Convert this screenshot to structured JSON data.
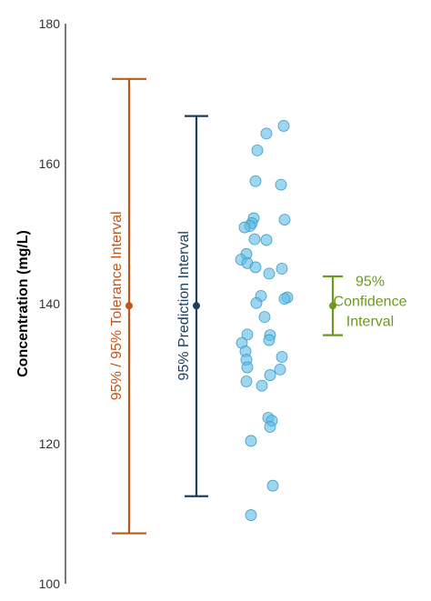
{
  "chart_data": {
    "type": "scatter",
    "title": "",
    "xlabel": "",
    "ylabel": "Concentration (mg/L)",
    "ylim": [
      100,
      180
    ],
    "yticks": [
      100,
      120,
      140,
      160,
      180
    ],
    "grid": false,
    "intervals": [
      {
        "key": "tolerance",
        "label": "95% / 95% Tolerance Interval",
        "color": "#c0571a",
        "center": 139.7,
        "lower": 107.2,
        "upper": 172.1
      },
      {
        "key": "prediction",
        "label": "95% Prediction Interval",
        "color": "#1d3f5e",
        "center": 139.7,
        "lower": 112.5,
        "upper": 166.8
      },
      {
        "key": "confidence",
        "label_lines": [
          "95%",
          "Confidence",
          "Interval"
        ],
        "color": "#6b9a1e",
        "center": 139.7,
        "lower": 135.5,
        "upper": 143.9
      }
    ],
    "points": {
      "color": "#5bbbe2",
      "values": [
        165.4,
        164.3,
        161.9,
        157.5,
        157.0,
        152.2,
        152.0,
        151.5,
        151.1,
        150.9,
        149.2,
        149.1,
        147.1,
        146.3,
        145.8,
        145.2,
        145.0,
        144.3,
        141.1,
        140.9,
        140.7,
        140.1,
        138.1,
        135.6,
        135.5,
        134.8,
        134.4,
        133.2,
        132.4,
        132.0,
        130.9,
        130.6,
        129.8,
        128.9,
        128.3,
        123.7,
        123.3,
        122.4,
        120.4,
        114.0,
        109.8
      ]
    }
  }
}
